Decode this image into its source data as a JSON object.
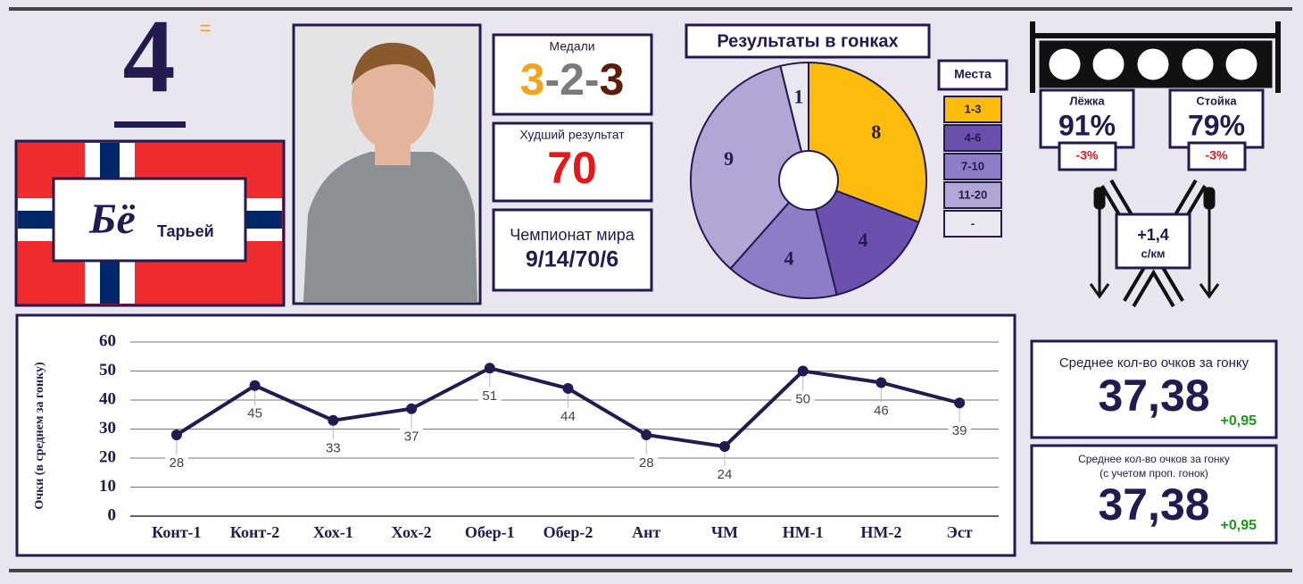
{
  "rank": {
    "position": 4,
    "change": "="
  },
  "athlete": {
    "surname": "Бё",
    "name": "Тарьей"
  },
  "medals": {
    "label": "Медали",
    "gold": 3,
    "silver": 2,
    "bronze": 3,
    "separator": "-"
  },
  "worst_result": {
    "label": "Худший результат",
    "value": 70
  },
  "world_championship": {
    "label": "Чемпионат мира",
    "value": "9/14/70/6"
  },
  "shooting": {
    "prone": {
      "label": "Лёжка",
      "value": "91%",
      "change": "-3%"
    },
    "standing": {
      "label": "Стойка",
      "value": "79%",
      "change": "-3%"
    }
  },
  "ski_speed": {
    "value": "+1,4",
    "unit": "с/км"
  },
  "average_points": {
    "label": "Среднее кол-во очков за гонку",
    "value": "37,38",
    "change": "+0,95"
  },
  "average_points_missed": {
    "label": "Среднее кол-во очков за гонку",
    "sublabel": "(с учетом проп. гонок)",
    "value": "37,38",
    "change": "+0,95"
  },
  "chart_data": [
    {
      "type": "pie",
      "title": "Результаты в гонках",
      "legend_title": "Места",
      "categories": [
        "1-3",
        "4-6",
        "7-10",
        "11-20",
        "-"
      ],
      "values": [
        8,
        4,
        4,
        9,
        1
      ],
      "colors": [
        "#FBBC0E",
        "#6B50AE",
        "#8D7DC7",
        "#B2A6D7",
        "#E9E7EF"
      ]
    },
    {
      "type": "line",
      "y_label": "Очки (в среднем за гонку)",
      "categories": [
        "Конт-1",
        "Конт-2",
        "Хох-1",
        "Хох-2",
        "Обер-1",
        "Обер-2",
        "Ант",
        "ЧМ",
        "НМ-1",
        "НМ-2",
        "Эст"
      ],
      "values": [
        28,
        45,
        33,
        37,
        51,
        44,
        28,
        24,
        50,
        46,
        39
      ],
      "color": "#231B4F",
      "ylim": [
        0,
        60
      ],
      "yticks": [
        0,
        10,
        20,
        30,
        40,
        50,
        60
      ],
      "grid": true
    }
  ]
}
